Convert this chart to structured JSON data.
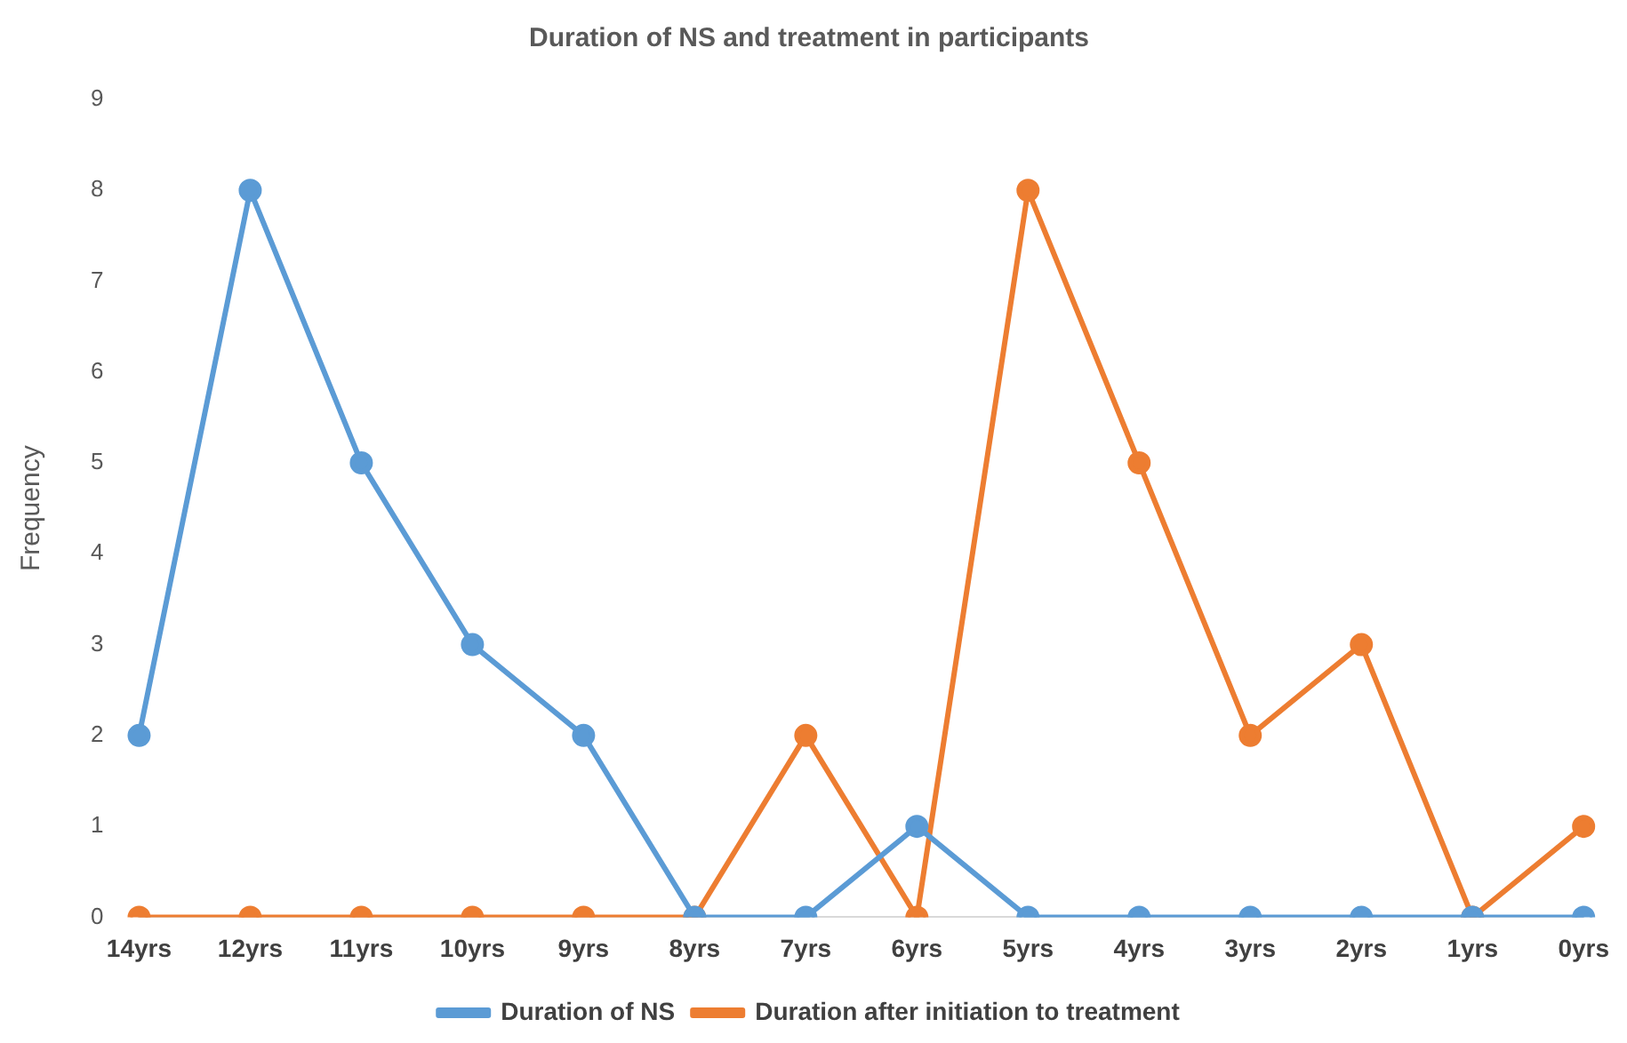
{
  "chart_data": {
    "type": "line",
    "title": "Duration of NS and treatment in participants",
    "ylabel": "Frequency",
    "categories": [
      "14yrs",
      "12yrs",
      "11yrs",
      "10yrs",
      "9yrs",
      "8yrs",
      "7yrs",
      "6yrs",
      "5yrs",
      "4yrs",
      "3yrs",
      "2yrs",
      "1yrs",
      "0yrs"
    ],
    "series": [
      {
        "name": "Duration of NS",
        "color": "#5b9bd5",
        "values": [
          2,
          8,
          5,
          3,
          2,
          0,
          0,
          1,
          0,
          0,
          0,
          0,
          0,
          0
        ]
      },
      {
        "name": "Duration after initiation to treatment",
        "color": "#ed7d31",
        "values": [
          0,
          0,
          0,
          0,
          0,
          0,
          2,
          0,
          8,
          5,
          2,
          3,
          0,
          1
        ]
      }
    ],
    "ylim": [
      0,
      9
    ],
    "yticks": [
      0,
      1,
      2,
      3,
      4,
      5,
      6,
      7,
      8,
      9
    ],
    "grid": false,
    "legend": "bottom",
    "marker": "circle",
    "line_style": "solid"
  }
}
